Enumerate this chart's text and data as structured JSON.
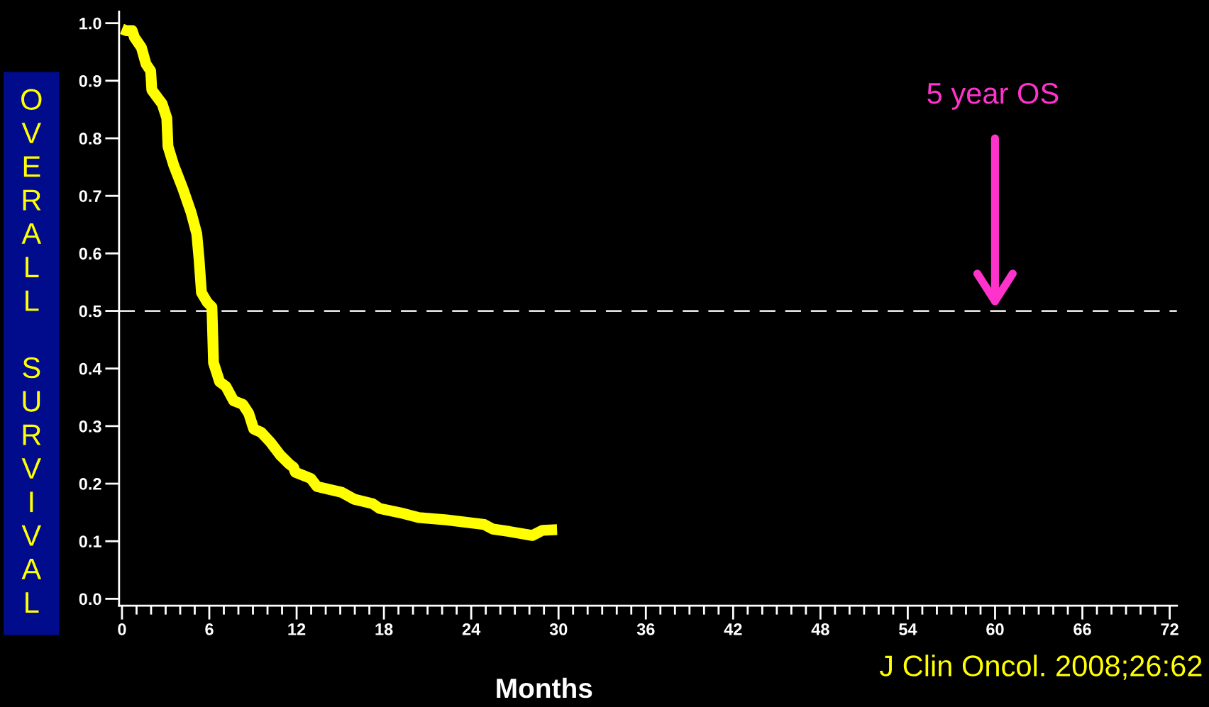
{
  "chart_data": {
    "type": "line",
    "xlabel": "Months",
    "ylabel": "OVERALL SURVIVAL",
    "x": [
      0,
      0.3,
      0.7,
      0.86,
      1.33,
      1.65,
      1.97,
      2.05,
      2.76,
      3.08,
      3.16,
      3.56,
      4.19,
      4.75,
      5.14,
      5.3,
      5.46,
      5.86,
      6.18,
      6.29,
      6.71,
      7.14,
      7.67,
      8.3,
      8.71,
      9.05,
      9.57,
      10.2,
      10.86,
      11.5,
      11.8,
      11.9,
      12.98,
      13.4,
      15.1,
      15.96,
      17.24,
      17.7,
      19.37,
      20.4,
      22.3,
      24.9,
      25.5,
      26.6,
      28.2,
      28.9,
      29.9
    ],
    "series": [
      {
        "color": "#ffff00",
        "values": [
          0.99,
          0.987,
          0.987,
          0.975,
          0.958,
          0.929,
          0.917,
          0.884,
          0.86,
          0.835,
          0.786,
          0.753,
          0.712,
          0.671,
          0.634,
          0.589,
          0.532,
          0.515,
          0.507,
          0.41,
          0.377,
          0.369,
          0.344,
          0.338,
          0.322,
          0.295,
          0.289,
          0.272,
          0.25,
          0.234,
          0.228,
          0.22,
          0.209,
          0.195,
          0.185,
          0.173,
          0.165,
          0.157,
          0.148,
          0.141,
          0.137,
          0.129,
          0.121,
          0.117,
          0.11,
          0.119,
          0.12
        ]
      }
    ],
    "xlim": [
      -0.2,
      72.5
    ],
    "ylim": [
      -0.012,
      1.02
    ],
    "xticks": [
      0,
      {
        "value": 1,
        "label": null
      },
      {
        "value": 2,
        "label": null
      },
      {
        "value": 3,
        "label": null
      },
      {
        "value": 4,
        "label": null
      },
      {
        "value": 5,
        "label": null
      },
      6,
      {
        "value": 7,
        "label": null
      },
      {
        "value": 8,
        "label": null
      },
      {
        "value": 9,
        "label": null
      },
      {
        "value": 10,
        "label": null
      },
      {
        "value": 11,
        "label": null
      },
      12,
      {
        "value": 13,
        "label": null
      },
      {
        "value": 14,
        "label": null
      },
      {
        "value": 15,
        "label": null
      },
      {
        "value": 16,
        "label": null
      },
      {
        "value": 17,
        "label": null
      },
      18,
      {
        "value": 19,
        "label": null
      },
      {
        "value": 20,
        "label": null
      },
      {
        "value": 21,
        "label": null
      },
      {
        "value": 22,
        "label": null
      },
      {
        "value": 23,
        "label": null
      },
      24,
      {
        "value": 25,
        "label": null
      },
      {
        "value": 26,
        "label": null
      },
      {
        "value": 27,
        "label": null
      },
      {
        "value": 28,
        "label": null
      },
      {
        "value": 29,
        "label": null
      },
      30,
      {
        "value": 31,
        "label": null
      },
      {
        "value": 32,
        "label": null
      },
      {
        "value": 33,
        "label": null
      },
      {
        "value": 34,
        "label": null
      },
      {
        "value": 35,
        "label": null
      },
      36,
      {
        "value": 37,
        "label": null
      },
      {
        "value": 38,
        "label": null
      },
      {
        "value": 39,
        "label": null
      },
      {
        "value": 40,
        "label": null
      },
      {
        "value": 41,
        "label": null
      },
      42,
      {
        "value": 43,
        "label": null
      },
      {
        "value": 44,
        "label": null
      },
      {
        "value": 45,
        "label": null
      },
      {
        "value": 46,
        "label": null
      },
      {
        "value": 47,
        "label": null
      },
      48,
      {
        "value": 49,
        "label": null
      },
      {
        "value": 50,
        "label": null
      },
      {
        "value": 51,
        "label": null
      },
      {
        "value": 52,
        "label": null
      },
      {
        "value": 53,
        "label": null
      },
      54,
      {
        "value": 55,
        "label": null
      },
      {
        "value": 56,
        "label": null
      },
      {
        "value": 57,
        "label": null
      },
      {
        "value": 58,
        "label": null
      },
      {
        "value": 59,
        "label": null
      },
      60,
      {
        "value": 61,
        "label": null
      },
      {
        "value": 62,
        "label": null
      },
      {
        "value": 63,
        "label": null
      },
      {
        "value": 64,
        "label": null
      },
      {
        "value": 65,
        "label": null
      },
      66,
      {
        "value": 67,
        "label": null
      },
      {
        "value": 68,
        "label": null
      },
      {
        "value": 69,
        "label": null
      },
      {
        "value": 70,
        "label": null
      },
      {
        "value": 71,
        "label": null
      },
      72
    ],
    "yticks": [
      {
        "value": 0,
        "label": "0.0"
      },
      {
        "value": 0.1,
        "label": "0.1"
      },
      {
        "value": 0.2,
        "label": "0.2"
      },
      {
        "value": 0.3,
        "label": "0.3"
      },
      {
        "value": 0.4,
        "label": "0.4"
      },
      {
        "value": 0.5,
        "label": "0.5"
      },
      {
        "value": 0.6,
        "label": "0.6"
      },
      {
        "value": 0.7,
        "label": "0.7"
      },
      {
        "value": 0.8,
        "label": "0.8"
      },
      {
        "value": 0.9,
        "label": "0.9"
      },
      {
        "value": 1,
        "label": "1.0"
      }
    ],
    "ref_lines": [
      {
        "axis": "y",
        "value": 0.5,
        "color": "#e0e0e0",
        "line_style": "dashed"
      }
    ],
    "annotations": [
      "5 year OS",
      "J Clin Oncol. 2008;26:62"
    ],
    "grid": false,
    "legend": false,
    "marker": "none",
    "line_style": "solid"
  }
}
